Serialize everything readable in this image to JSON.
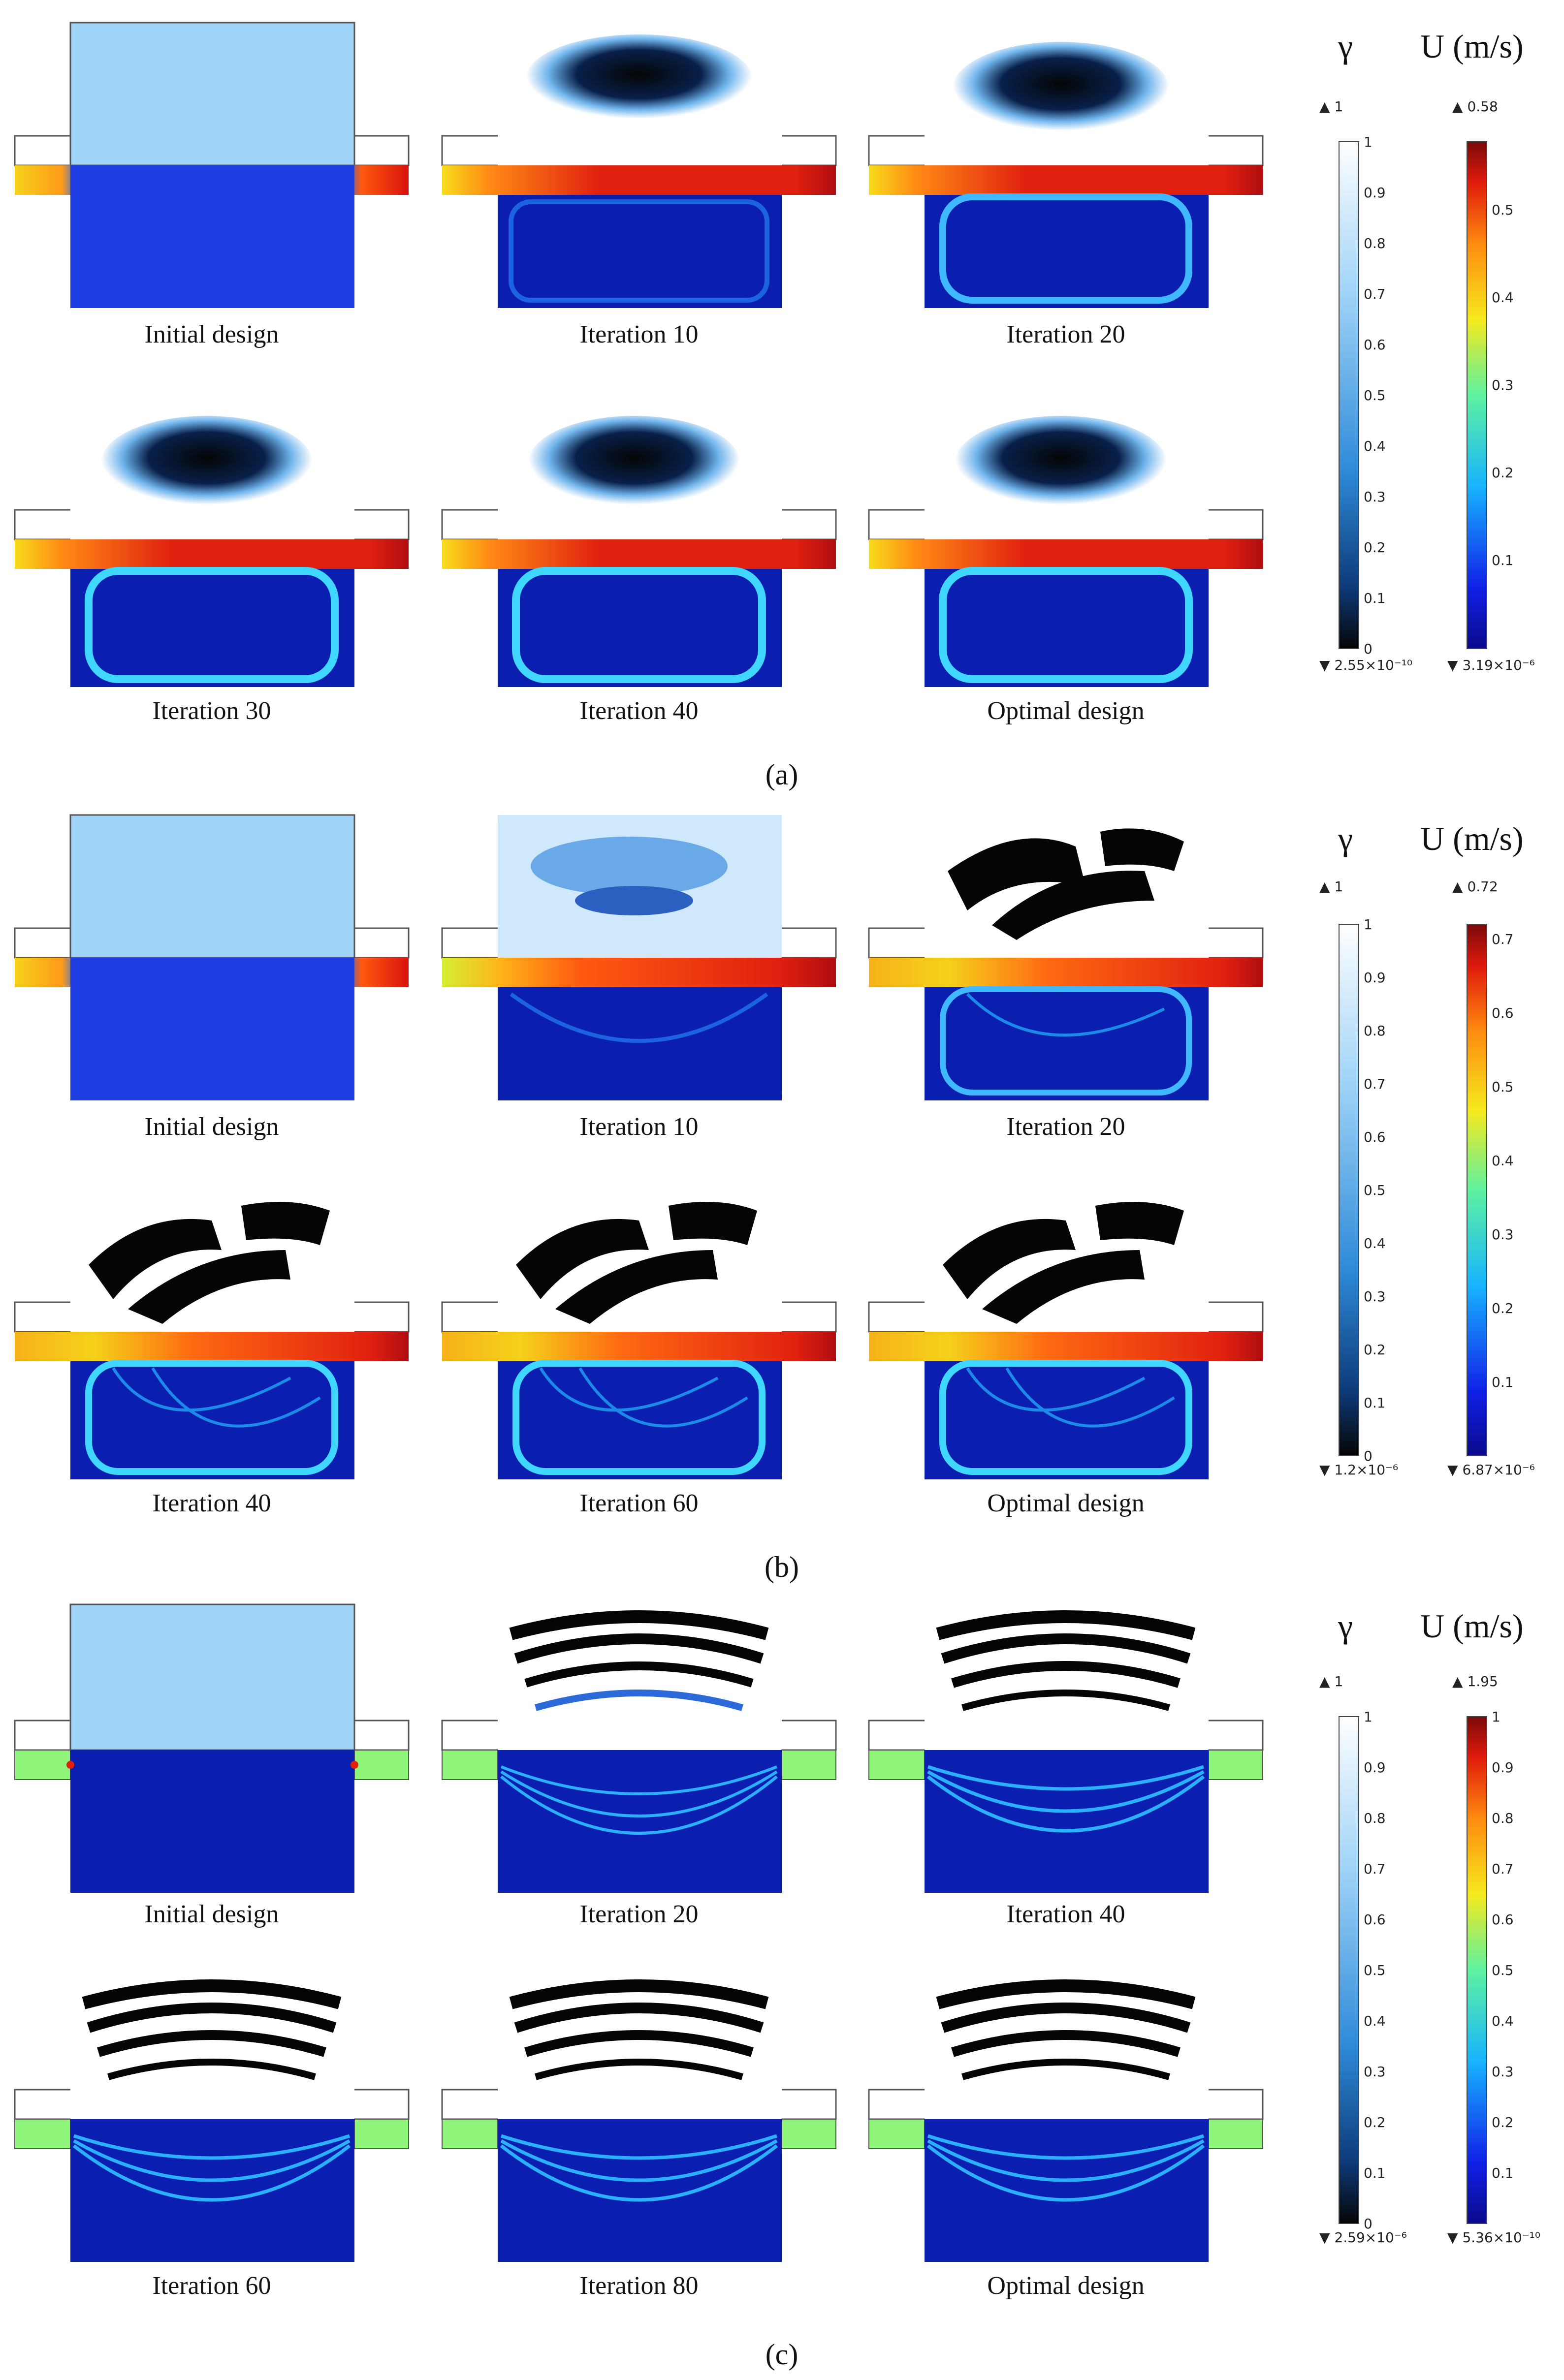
{
  "panels": [
    {
      "caption": "(a)",
      "label_letter": "a",
      "frames": [
        "Initial design",
        "Iteration 10",
        "Iteration 20",
        "Iteration 30",
        "Iteration 40",
        "Optimal design"
      ],
      "gamma_symbol": "γ",
      "velocity_title": "U (m/s)",
      "gamma_max": "1",
      "gamma_min": "2.55×10⁻¹⁰",
      "velocity_max": "0.58",
      "velocity_min": "3.19×10⁻⁶",
      "gamma_ticks": [
        "1",
        "0.9",
        "0.8",
        "0.7",
        "0.6",
        "0.5",
        "0.4",
        "0.3",
        "0.2",
        "0.1",
        "0"
      ],
      "velocity_ticks": [
        "0.5",
        "0.4",
        "0.3",
        "0.2",
        "0.1"
      ]
    },
    {
      "caption": "(b)",
      "label_letter": "b",
      "frames": [
        "Initial design",
        "Iteration 10",
        "Iteration 20",
        "Iteration 40",
        "Iteration 60",
        "Optimal design"
      ],
      "gamma_symbol": "γ",
      "velocity_title": "U (m/s)",
      "gamma_max": "1",
      "gamma_min": "1.2×10⁻⁶",
      "velocity_max": "0.72",
      "velocity_min": "6.87×10⁻⁶",
      "gamma_ticks": [
        "1",
        "0.9",
        "0.8",
        "0.7",
        "0.6",
        "0.5",
        "0.4",
        "0.3",
        "0.2",
        "0.1",
        "0"
      ],
      "velocity_ticks": [
        "0.7",
        "0.6",
        "0.5",
        "0.4",
        "0.3",
        "0.2",
        "0.1"
      ]
    },
    {
      "caption": "(c)",
      "label_letter": "c",
      "frames": [
        "Initial design",
        "Iteration 20",
        "Iteration 40",
        "Iteration 60",
        "Iteration 80",
        "Optimal design"
      ],
      "gamma_symbol": "γ",
      "velocity_title": "U (m/s)",
      "gamma_max": "1",
      "gamma_min": "2.59×10⁻⁶",
      "velocity_max": "1.95",
      "velocity_min": "5.36×10⁻¹⁰",
      "gamma_ticks": [
        "1",
        "0.9",
        "0.8",
        "0.7",
        "0.6",
        "0.5",
        "0.4",
        "0.3",
        "0.2",
        "0.1",
        "0"
      ],
      "velocity_ticks": [
        "1",
        "0.9",
        "0.8",
        "0.7",
        "0.6",
        "0.5",
        "0.4",
        "0.3",
        "0.2",
        "0.1"
      ]
    }
  ],
  "colors": {
    "deep_blue": "#0a1fb0",
    "mid_blue": "#1e4fe8",
    "cyan": "#3fd7ff",
    "light_blue": "#9fd3f7",
    "red": "#d8120c",
    "orange": "#ff9a1a",
    "yellow": "#f5dc1c",
    "green": "#8ef47a",
    "black": "#050505",
    "white": "#ffffff"
  }
}
